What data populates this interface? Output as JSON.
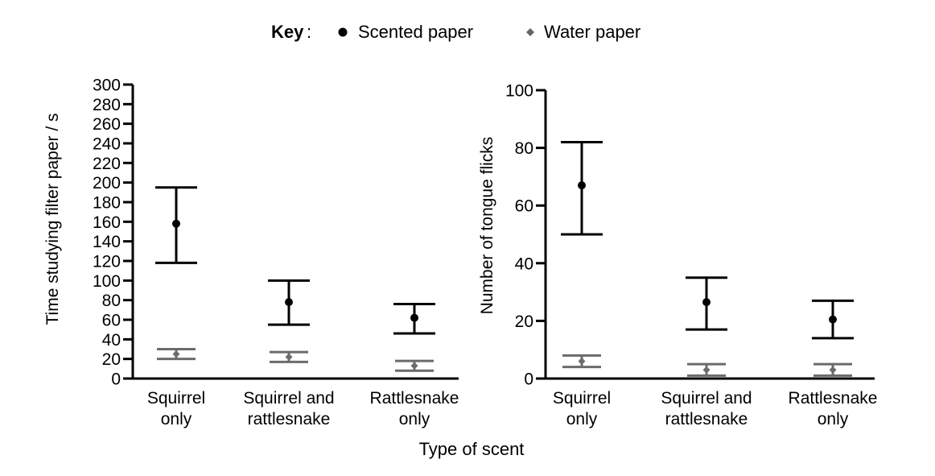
{
  "legend": {
    "key_label": "Key",
    "key_colon": ":",
    "items": [
      {
        "label": "Scented paper",
        "marker": "circle",
        "color": "#000000"
      },
      {
        "label": "Water paper",
        "marker": "diamond",
        "color": "#666666"
      }
    ]
  },
  "shared_xlabel": "Type of scent",
  "chart_data": [
    {
      "type": "scatter",
      "title": "",
      "xlabel": "Type of scent",
      "ylabel": "Time studying filter paper / s",
      "categories": [
        [
          "Squirrel",
          "only"
        ],
        [
          "Squirrel and",
          "rattlesnake"
        ],
        [
          "Rattlesnake",
          "only"
        ]
      ],
      "ylim": [
        0,
        300
      ],
      "yticks": [
        0,
        20,
        40,
        60,
        80,
        100,
        120,
        140,
        160,
        180,
        200,
        220,
        240,
        260,
        280,
        300
      ],
      "grid": false,
      "series": [
        {
          "name": "Scented paper",
          "marker": "circle",
          "color": "#000000",
          "values": [
            158,
            78,
            62
          ],
          "upper": [
            195,
            100,
            76
          ],
          "lower": [
            118,
            55,
            46
          ]
        },
        {
          "name": "Water paper",
          "marker": "diamond",
          "color": "#666666",
          "values": [
            25,
            22,
            13
          ],
          "upper": [
            30,
            27,
            18
          ],
          "lower": [
            20,
            17,
            8
          ]
        }
      ]
    },
    {
      "type": "scatter",
      "title": "",
      "xlabel": "Type of scent",
      "ylabel": "Number of tongue flicks",
      "categories": [
        [
          "Squirrel",
          "only"
        ],
        [
          "Squirrel and",
          "rattlesnake"
        ],
        [
          "Rattlesnake",
          "only"
        ]
      ],
      "ylim": [
        0,
        100
      ],
      "yticks": [
        0,
        20,
        40,
        60,
        80,
        100
      ],
      "grid": false,
      "series": [
        {
          "name": "Scented paper",
          "marker": "circle",
          "color": "#000000",
          "values": [
            67,
            26.5,
            20.5
          ],
          "upper": [
            82,
            35,
            27
          ],
          "lower": [
            50,
            17,
            14
          ]
        },
        {
          "name": "Water paper",
          "marker": "diamond",
          "color": "#666666",
          "values": [
            6,
            3,
            3
          ],
          "upper": [
            8,
            5,
            5
          ],
          "lower": [
            4,
            1,
            1
          ]
        }
      ]
    }
  ]
}
